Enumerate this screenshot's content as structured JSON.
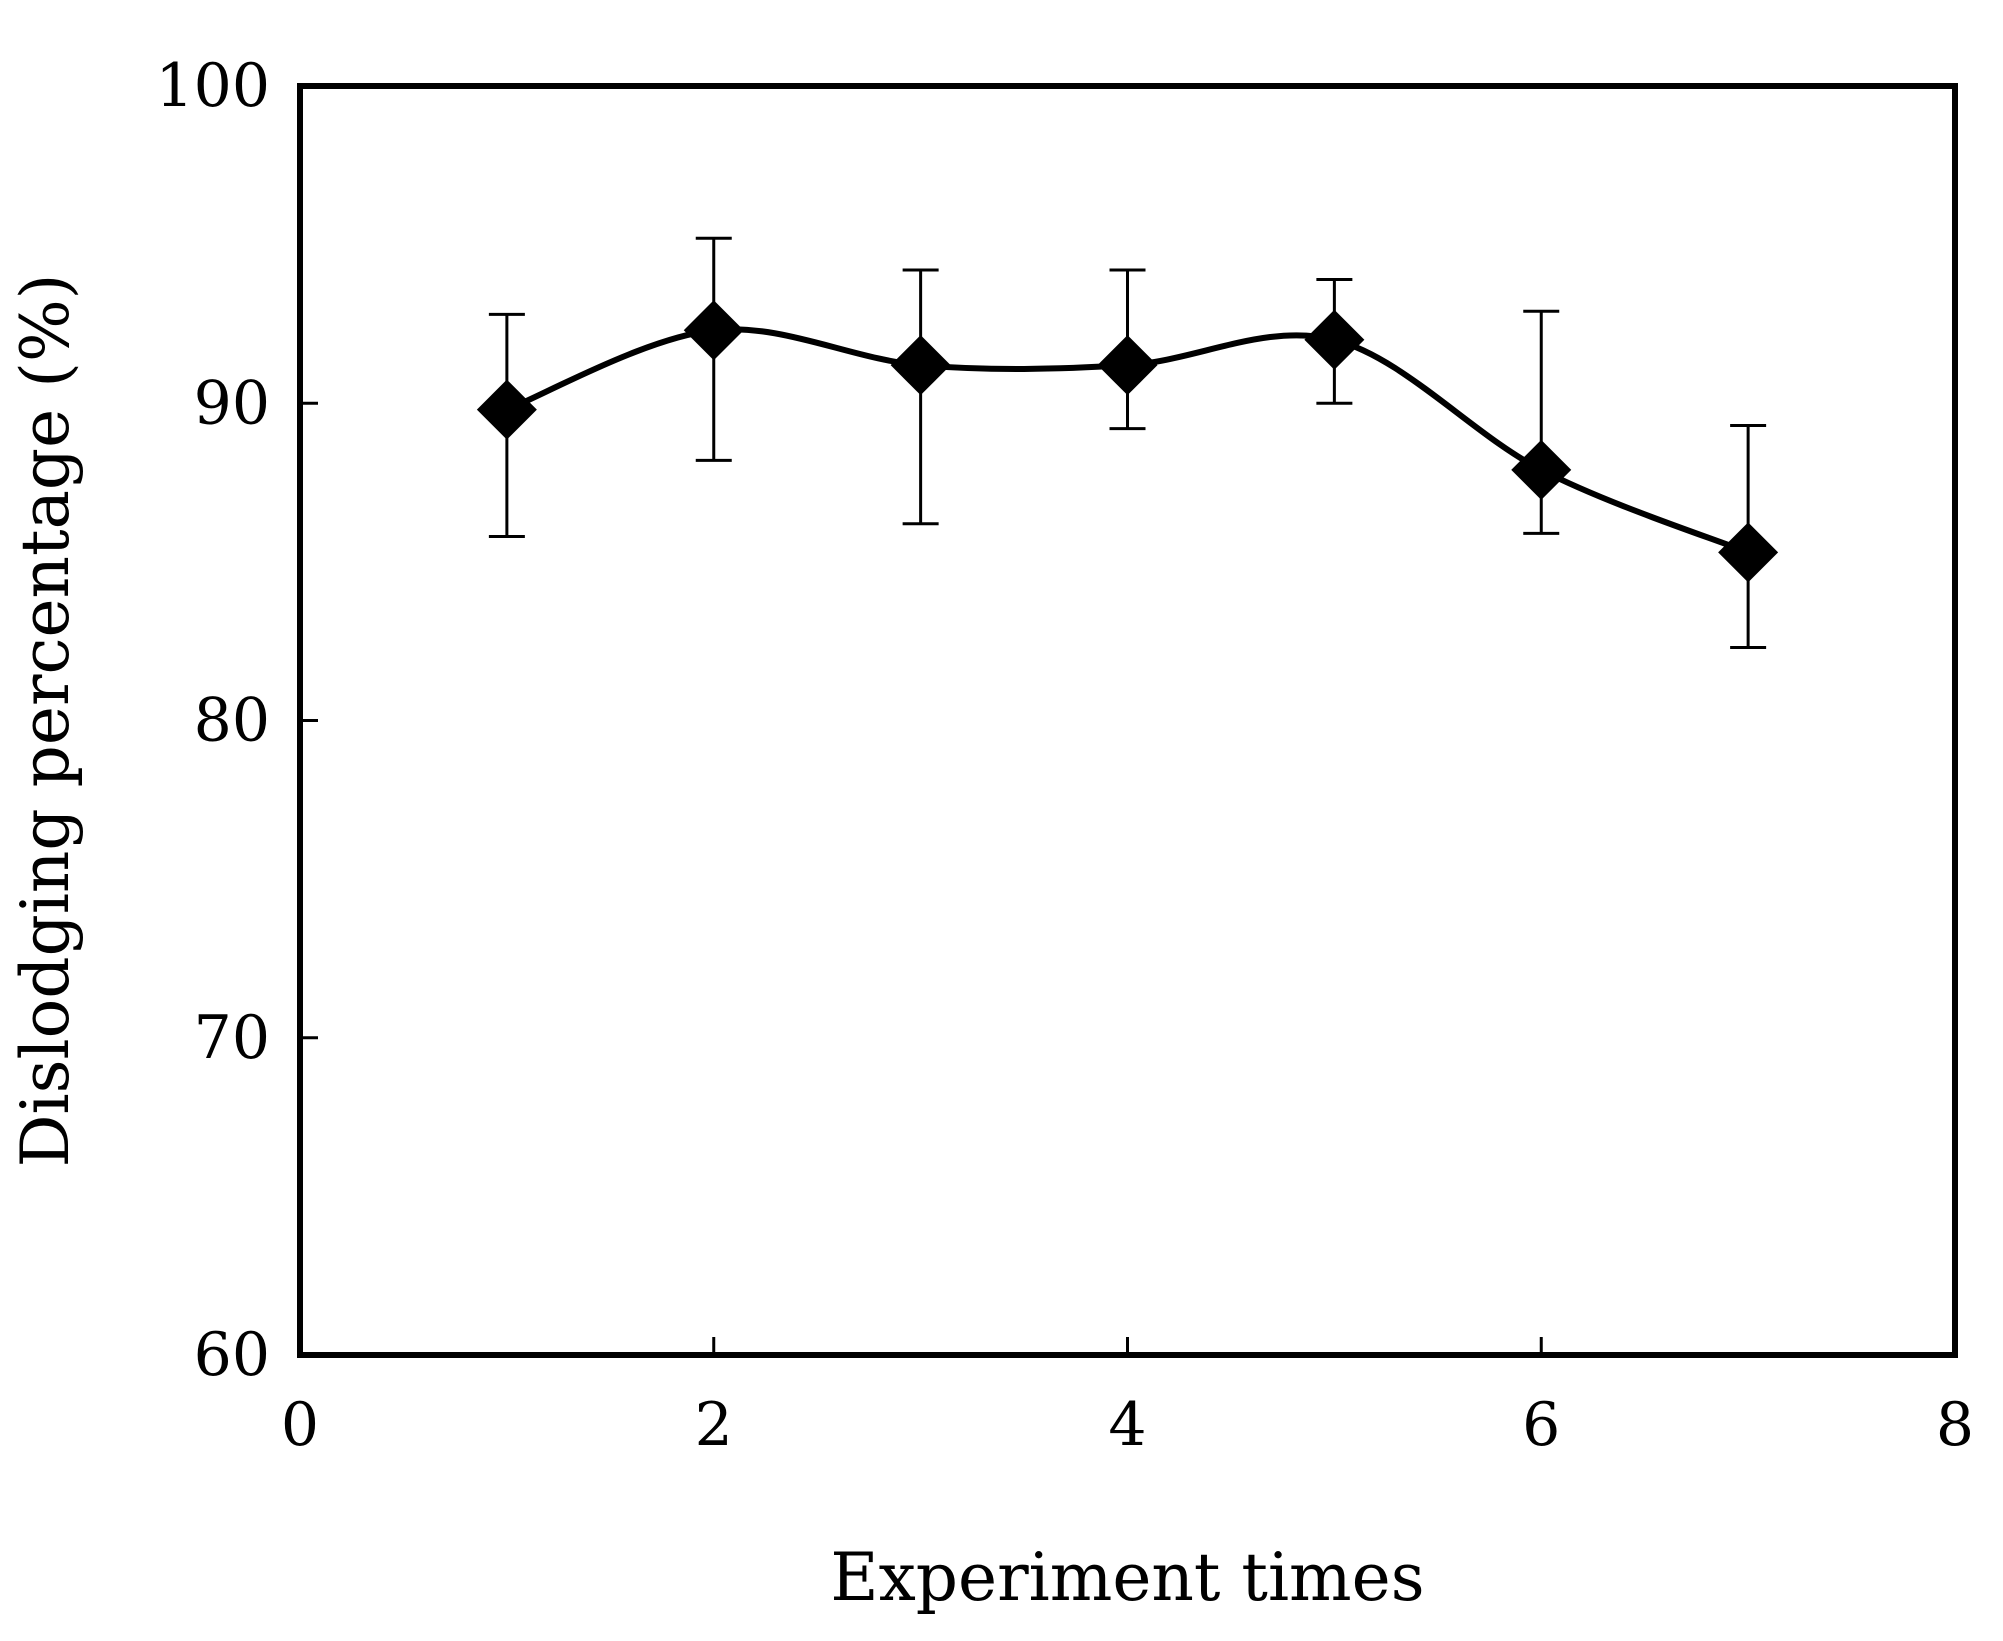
{
  "chart_data": {
    "type": "line",
    "title": "",
    "xlabel": "Experiment times",
    "ylabel": "Dislodging percentage (%)",
    "xlim": [
      0,
      8
    ],
    "ylim": [
      60,
      100
    ],
    "xticks": [
      0,
      2,
      4,
      6,
      8
    ],
    "yticks": [
      60,
      70,
      80,
      90,
      100
    ],
    "grid": false,
    "marker": "diamond",
    "smooth": true,
    "series": [
      {
        "name": "Dislodging percentage",
        "x": [
          1,
          2,
          3,
          4,
          5,
          6,
          7
        ],
        "y": [
          89.8,
          92.3,
          91.2,
          91.2,
          92.0,
          87.9,
          85.3
        ],
        "err_upper": [
          3.0,
          2.9,
          3.0,
          3.0,
          1.9,
          5.0,
          4.0
        ],
        "err_lower": [
          4.0,
          4.1,
          5.0,
          2.0,
          2.0,
          2.0,
          3.0
        ]
      }
    ]
  }
}
